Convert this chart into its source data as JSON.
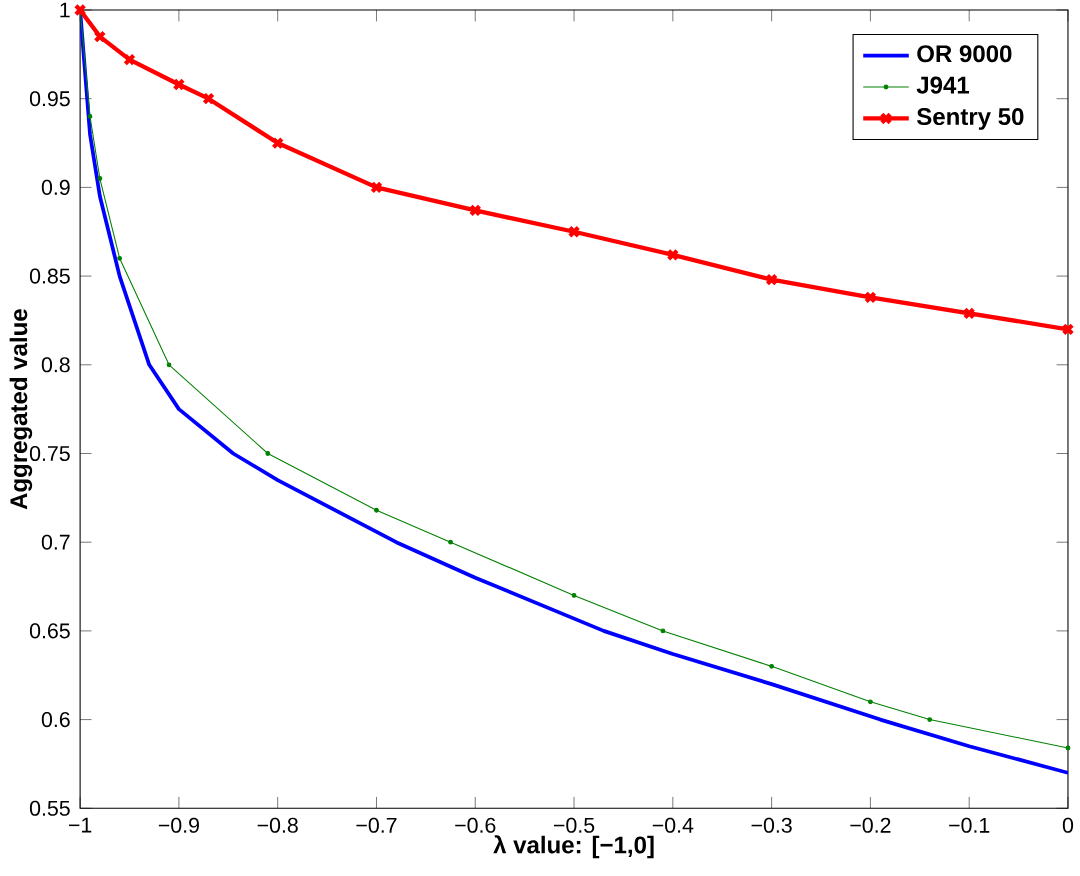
{
  "chart_data": {
    "type": "line",
    "xlabel": "λ value: [−1,0]",
    "ylabel": "Aggregated value",
    "xlim": [
      -1,
      0
    ],
    "ylim": [
      0.55,
      1
    ],
    "xticks": [
      {
        "value": -1,
        "label": "−1"
      },
      {
        "value": -0.9,
        "label": "−0.9"
      },
      {
        "value": -0.8,
        "label": "−0.8"
      },
      {
        "value": -0.7,
        "label": "−0.7"
      },
      {
        "value": -0.6,
        "label": "−0.6"
      },
      {
        "value": -0.5,
        "label": "−0.5"
      },
      {
        "value": -0.4,
        "label": "−0.4"
      },
      {
        "value": -0.3,
        "label": "−0.3"
      },
      {
        "value": -0.2,
        "label": "−0.2"
      },
      {
        "value": -0.1,
        "label": "−0.1"
      },
      0
    ],
    "yticks": [
      0.55,
      0.6,
      0.65,
      0.7,
      0.75,
      0.8,
      0.85,
      0.9,
      0.95,
      1
    ],
    "grid": false,
    "legend": "top right",
    "line_style": "solid",
    "series": [
      {
        "name": "OR 9000",
        "color": "#0000ff",
        "marker": "none",
        "x": [
          -1,
          -0.99,
          -0.98,
          -0.96,
          -0.93,
          -0.9,
          -0.845,
          -0.8,
          -0.68,
          -0.6,
          -0.47,
          -0.4,
          -0.3,
          -0.19,
          -0.1,
          0
        ],
        "values": [
          1.0,
          0.93,
          0.895,
          0.85,
          0.8,
          0.775,
          0.75,
          0.735,
          0.7,
          0.68,
          0.65,
          0.637,
          0.62,
          0.6,
          0.585,
          0.57
        ]
      },
      {
        "name": "J941",
        "color": "#008000",
        "marker": "circle",
        "x": [
          -1,
          -0.99,
          -0.98,
          -0.96,
          -0.91,
          -0.81,
          -0.7,
          -0.625,
          -0.5,
          -0.41,
          -0.3,
          -0.2,
          -0.14,
          0
        ],
        "values": [
          1.0,
          0.94,
          0.905,
          0.86,
          0.8,
          0.75,
          0.718,
          0.7,
          0.67,
          0.65,
          0.63,
          0.61,
          0.6,
          0.584
        ]
      },
      {
        "name": "Sentry 50",
        "color": "#ff0000",
        "marker": "cross",
        "x": [
          -1,
          -0.98,
          -0.95,
          -0.9,
          -0.87,
          -0.8,
          -0.7,
          -0.6,
          -0.5,
          -0.4,
          -0.3,
          -0.2,
          -0.1,
          0
        ],
        "values": [
          1.0,
          0.985,
          0.972,
          0.958,
          0.95,
          0.925,
          0.9,
          0.887,
          0.875,
          0.862,
          0.848,
          0.838,
          0.829,
          0.82
        ]
      }
    ]
  }
}
